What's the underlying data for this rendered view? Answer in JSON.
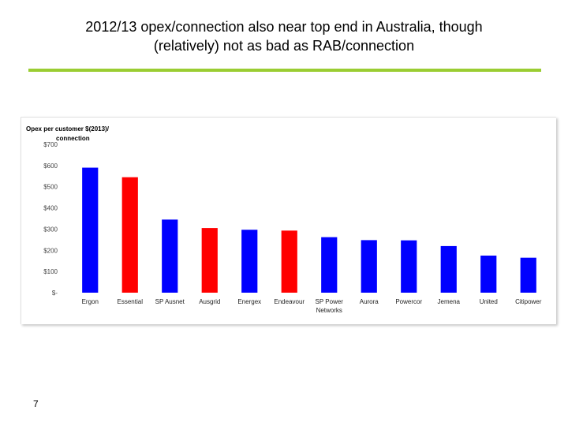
{
  "slide": {
    "title_line1": "2012/13 opex/connection also near top end in Australia, though",
    "title_line2": "(relatively) not as bad as RAB/connection",
    "page_number": "7",
    "rule_color": "#9acd32"
  },
  "chart_data": {
    "type": "bar",
    "ylabel_line1": "Opex per customer $(2013)/",
    "ylabel_line2": "connection",
    "ylim": [
      0,
      700
    ],
    "yticks": [
      0,
      100,
      200,
      300,
      400,
      500,
      600,
      700
    ],
    "ytick_labels": [
      "$-",
      "$100",
      "$200",
      "$300",
      "$400",
      "$500",
      "$600",
      "$700"
    ],
    "grid": false,
    "legend": "none",
    "categories": [
      "Ergon",
      "Essential",
      "SP Ausnet",
      "Ausgrid",
      "Energex",
      "Endeavour",
      "SP Power Networks",
      "Aurora",
      "Powercor",
      "Jemena",
      "United",
      "Citipower"
    ],
    "category_label_lines": [
      [
        "Ergon"
      ],
      [
        "Essential"
      ],
      [
        "SP Ausnet"
      ],
      [
        "Ausgrid"
      ],
      [
        "Energex"
      ],
      [
        "Endeavour"
      ],
      [
        "SP Power",
        "Networks"
      ],
      [
        "Aurora"
      ],
      [
        "Powercor"
      ],
      [
        "Jemena"
      ],
      [
        "United"
      ],
      [
        "Citipower"
      ]
    ],
    "values": [
      590,
      545,
      345,
      305,
      297,
      293,
      262,
      248,
      247,
      220,
      175,
      165
    ],
    "bar_colors": [
      "#0000ff",
      "#ff0000",
      "#0000ff",
      "#ff0000",
      "#0000ff",
      "#ff0000",
      "#0000ff",
      "#0000ff",
      "#0000ff",
      "#0000ff",
      "#0000ff",
      "#0000ff"
    ]
  }
}
